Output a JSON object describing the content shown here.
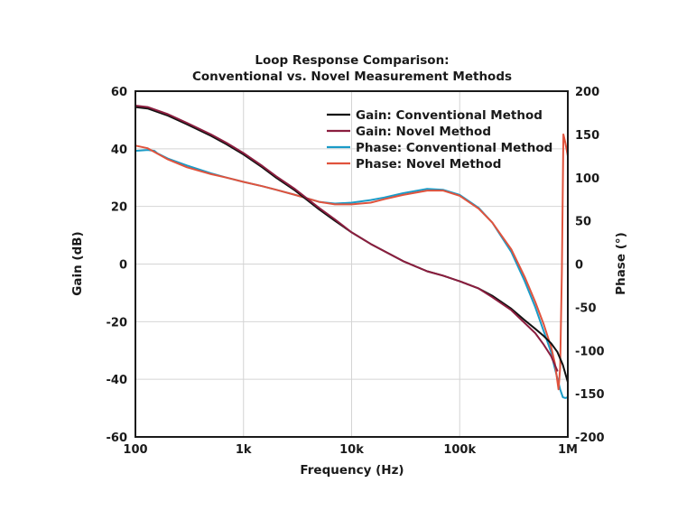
{
  "chart_data": {
    "type": "line",
    "title": "Loop Response Comparison:",
    "subtitle": "Conventional vs. Novel Measurement Methods",
    "xlabel": "Frequency (Hz)",
    "ylabel": "Gain (dB)",
    "y2label": "Phase (°)",
    "xscale": "log",
    "xlim": [
      100,
      1000000
    ],
    "ylim": [
      -60,
      60
    ],
    "y2lim": [
      -200,
      200
    ],
    "grid": true,
    "legend_position": "top-right",
    "xticks": [
      {
        "value": 100,
        "label": "100"
      },
      {
        "value": 1000,
        "label": "1k"
      },
      {
        "value": 10000,
        "label": "10k"
      },
      {
        "value": 100000,
        "label": "100k"
      },
      {
        "value": 1000000,
        "label": "1M"
      }
    ],
    "yticks": [
      {
        "value": 60,
        "label": "60"
      },
      {
        "value": 40,
        "label": "40"
      },
      {
        "value": 20,
        "label": "20"
      },
      {
        "value": 0,
        "label": "0"
      },
      {
        "value": -20,
        "label": "-20"
      },
      {
        "value": -40,
        "label": "-40"
      },
      {
        "value": -60,
        "label": "-60"
      }
    ],
    "y2ticks": [
      {
        "value": 200,
        "label": "200"
      },
      {
        "value": 150,
        "label": "150"
      },
      {
        "value": 100,
        "label": "100"
      },
      {
        "value": 50,
        "label": "50"
      },
      {
        "value": 0,
        "label": "0"
      },
      {
        "value": -50,
        "label": "-50"
      },
      {
        "value": -100,
        "label": "-100"
      },
      {
        "value": -150,
        "label": "-150"
      },
      {
        "value": -200,
        "label": "-200"
      }
    ],
    "series": [
      {
        "name": "Gain: Conventional Method",
        "axis": "left",
        "color": "#111111",
        "x": [
          100,
          130,
          200,
          300,
          500,
          700,
          1000,
          1500,
          2000,
          3000,
          5000,
          7000,
          10000,
          15000,
          20000,
          30000,
          50000,
          70000,
          100000,
          150000,
          200000,
          300000,
          400000,
          500000,
          600000,
          700000,
          800000,
          900000,
          1000000
        ],
        "values": [
          54.5,
          54,
          51.5,
          48.5,
          44.5,
          41.5,
          38,
          33.5,
          30,
          25.5,
          19,
          15,
          11,
          7,
          4.5,
          1,
          -2.5,
          -4,
          -6,
          -8.5,
          -11,
          -15.5,
          -19.5,
          -22.5,
          -25,
          -27.5,
          -30.5,
          -35,
          -41
        ]
      },
      {
        "name": "Gain: Novel Method",
        "axis": "left",
        "color": "#8b1e3f",
        "x": [
          100,
          130,
          200,
          300,
          500,
          700,
          1000,
          1500,
          2000,
          3000,
          5000,
          7000,
          10000,
          15000,
          20000,
          30000,
          50000,
          70000,
          100000,
          150000,
          200000,
          300000,
          400000,
          500000,
          600000,
          700000,
          800000
        ],
        "values": [
          55,
          54.5,
          52,
          49,
          45,
          42,
          38.5,
          34,
          30.5,
          26,
          19.5,
          15.5,
          11,
          7,
          4.5,
          1,
          -2.5,
          -4,
          -6,
          -8.5,
          -11.5,
          -16,
          -20.5,
          -24,
          -28,
          -32,
          -37
        ]
      },
      {
        "name": "Phase: Conventional Method",
        "axis": "right",
        "color": "#1a9bc7",
        "x": [
          100,
          130,
          150,
          160,
          200,
          300,
          500,
          700,
          1000,
          1500,
          2000,
          3000,
          5000,
          7000,
          10000,
          15000,
          20000,
          30000,
          50000,
          70000,
          100000,
          150000,
          200000,
          300000,
          400000,
          500000,
          600000,
          700000,
          750000,
          800000,
          850000,
          900000,
          950000,
          1000000
        ],
        "values": [
          131,
          132,
          131,
          128,
          122,
          114,
          105,
          100,
          95,
          90,
          86,
          80,
          72,
          70,
          71,
          74,
          77,
          82,
          87,
          86,
          80,
          65,
          48,
          14,
          -20,
          -50,
          -78,
          -102,
          -118,
          -132,
          -145,
          -154,
          -155,
          -154
        ]
      },
      {
        "name": "Phase: Novel Method",
        "axis": "right",
        "color": "#e0533d",
        "x": [
          100,
          130,
          200,
          300,
          500,
          700,
          1000,
          1500,
          2000,
          3000,
          5000,
          7000,
          10000,
          15000,
          20000,
          30000,
          50000,
          70000,
          100000,
          150000,
          200000,
          300000,
          400000,
          500000,
          600000,
          700000,
          760000,
          790000,
          820000,
          850000,
          880000,
          910000,
          950000,
          1000000
        ],
        "values": [
          137,
          134,
          121,
          112,
          104,
          100,
          95,
          90,
          86,
          80,
          72,
          69,
          69,
          71,
          75,
          80,
          85,
          85,
          79,
          64,
          48,
          17,
          -15,
          -44,
          -70,
          -96,
          -115,
          -130,
          -145,
          -120,
          -10,
          150,
          140,
          125
        ]
      }
    ]
  }
}
